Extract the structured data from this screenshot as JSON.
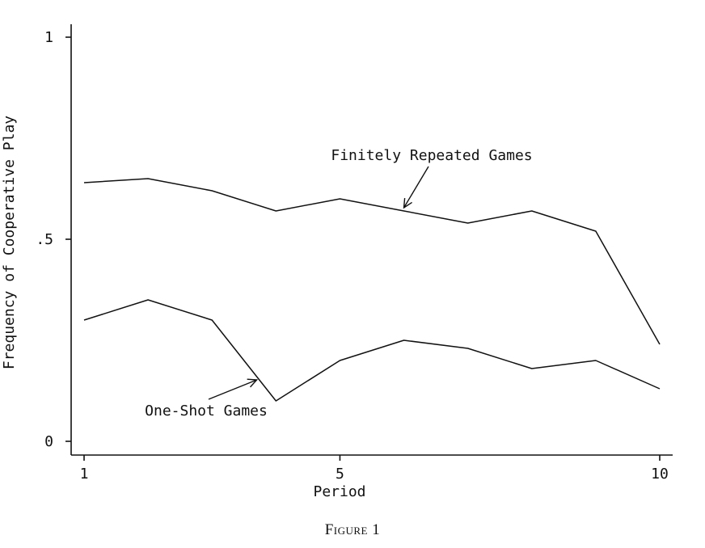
{
  "chart_data": {
    "type": "line",
    "title": "",
    "xlabel": "Period",
    "ylabel": "Frequency of Cooperative Play",
    "xlim": [
      1,
      10
    ],
    "ylim": [
      0,
      1
    ],
    "x_ticks": [
      1,
      5,
      10
    ],
    "x_tick_labels": [
      "1",
      "5",
      "10"
    ],
    "y_ticks": [
      0,
      0.5,
      1
    ],
    "y_tick_labels": [
      "0",
      ".5",
      "1"
    ],
    "grid": false,
    "x": [
      1,
      2,
      3,
      4,
      5,
      6,
      7,
      8,
      9,
      10
    ],
    "series": [
      {
        "name": "Finitely Repeated Games",
        "values": [
          0.64,
          0.65,
          0.62,
          0.57,
          0.6,
          0.57,
          0.54,
          0.57,
          0.52,
          0.24
        ],
        "color": "#111111"
      },
      {
        "name": "One-Shot Games",
        "values": [
          0.3,
          0.35,
          0.3,
          0.1,
          0.2,
          0.25,
          0.23,
          0.18,
          0.2,
          0.13
        ],
        "color": "#111111"
      }
    ],
    "annotations": [
      {
        "text": "Finitely Repeated Games",
        "series": 0,
        "arrow_to_x": 6
      },
      {
        "text": "One-Shot Games",
        "series": 1,
        "arrow_to_x": 3.7
      }
    ]
  },
  "caption": "Figure 1"
}
